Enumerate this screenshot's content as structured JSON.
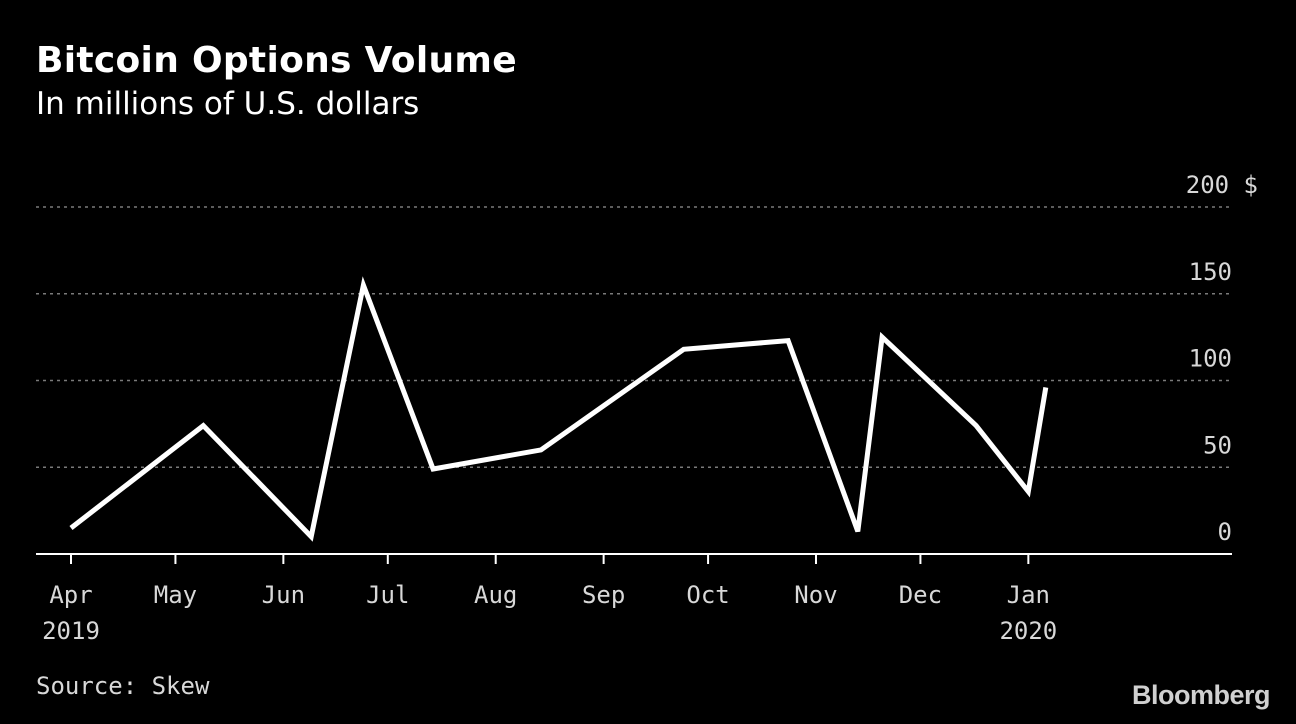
{
  "header": {
    "title": "Bitcoin Options Volume",
    "subtitle": "In millions of U.S. dollars"
  },
  "footer": {
    "source": "Source: Skew",
    "brand": "Bloomberg"
  },
  "colors": {
    "background": "#000000",
    "line": "#ffffff",
    "grid": "#7a7a7a",
    "text": "#ffffff",
    "axis_text": "#d8d8d8"
  },
  "chart_data": {
    "type": "line",
    "title": "Bitcoin Options Volume",
    "subtitle": "In millions of U.S. dollars",
    "xlabel": "",
    "ylabel": "",
    "unit_label": "$",
    "ylim": [
      0,
      200
    ],
    "y_ticks": [
      0,
      50,
      100,
      150,
      200
    ],
    "y_axis_position": "right",
    "grid": "horizontal dotted",
    "legend": "none",
    "x_range": [
      "2019-04-01",
      "2020-02-15"
    ],
    "x_ticks": [
      {
        "date": "2019-04-01",
        "label": "Apr",
        "year": "2019"
      },
      {
        "date": "2019-05-01",
        "label": "May",
        "year": ""
      },
      {
        "date": "2019-06-01",
        "label": "Jun",
        "year": ""
      },
      {
        "date": "2019-07-01",
        "label": "Jul",
        "year": ""
      },
      {
        "date": "2019-08-01",
        "label": "Aug",
        "year": ""
      },
      {
        "date": "2019-09-01",
        "label": "Sep",
        "year": ""
      },
      {
        "date": "2019-10-01",
        "label": "Oct",
        "year": ""
      },
      {
        "date": "2019-11-01",
        "label": "Nov",
        "year": ""
      },
      {
        "date": "2019-12-01",
        "label": "Dec",
        "year": ""
      },
      {
        "date": "2020-01-01",
        "label": "Jan",
        "year": "2020"
      }
    ],
    "series": [
      {
        "x": [
          "2019-04-01",
          "2019-05-09",
          "2019-06-09",
          "2019-06-24",
          "2019-07-14",
          "2019-08-14",
          "2019-09-24",
          "2019-10-24",
          "2019-11-13",
          "2019-11-20",
          "2019-12-17",
          "2020-01-01",
          "2020-01-06"
        ],
        "y": [
          15,
          74,
          10,
          155,
          49,
          60,
          118,
          123,
          13,
          125,
          74,
          36,
          96
        ]
      }
    ]
  }
}
